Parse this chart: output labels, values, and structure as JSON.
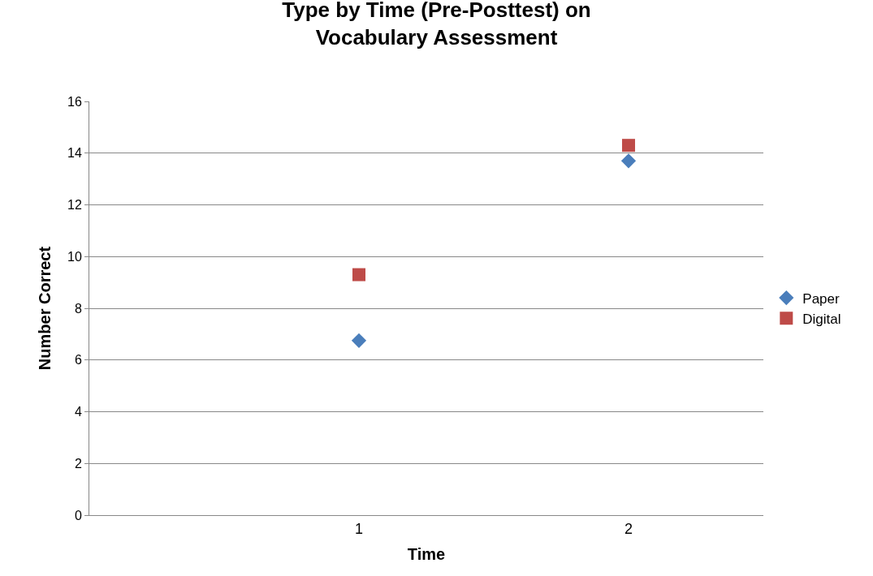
{
  "chart_data": {
    "type": "scatter",
    "title": "Type by Time (Pre-Posttest) on\nVocabulary Assessment",
    "xlabel": "Time",
    "ylabel": "Number Correct",
    "x": [
      1,
      2
    ],
    "series": [
      {
        "name": "Paper",
        "color": "#4a7ebb",
        "marker": "diamond",
        "values": [
          6.75,
          13.7
        ]
      },
      {
        "name": "Digital",
        "color": "#be4b48",
        "marker": "square",
        "values": [
          9.3,
          14.3
        ]
      }
    ],
    "xlim": [
      0,
      2.5
    ],
    "xticks": [
      1,
      2
    ],
    "ylim": [
      0,
      16
    ],
    "yticks": [
      0,
      2,
      4,
      6,
      8,
      10,
      12,
      14,
      16
    ],
    "grid": "y",
    "legend": "right"
  }
}
